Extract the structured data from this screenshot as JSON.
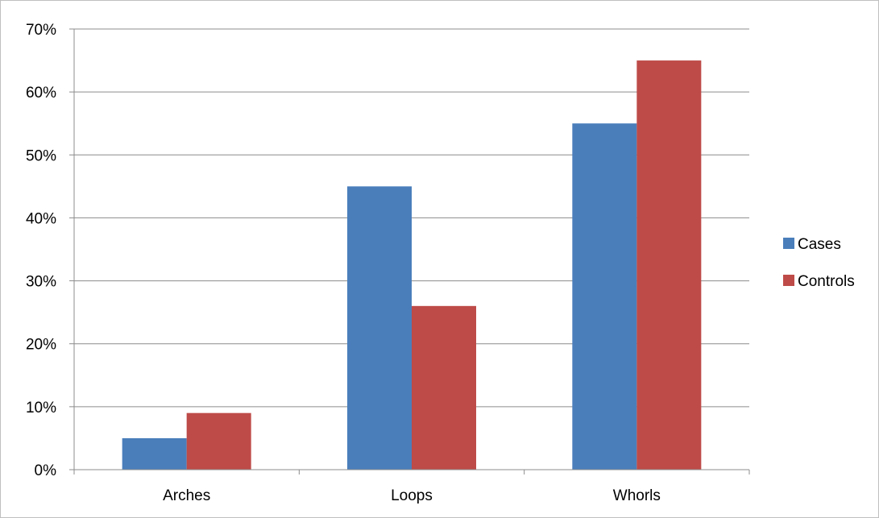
{
  "chart_data": {
    "type": "bar",
    "title": "",
    "xlabel": "",
    "ylabel": "",
    "categories": [
      "Arches",
      "Loops",
      "Whorls"
    ],
    "series": [
      {
        "name": "Cases",
        "color": "#4a7ebb",
        "values": [
          5,
          45,
          55
        ]
      },
      {
        "name": "Controls",
        "color": "#be4b48",
        "values": [
          9,
          26,
          65
        ]
      }
    ],
    "ylim": [
      0,
      70
    ],
    "yticks": [
      0,
      10,
      20,
      30,
      40,
      50,
      60,
      70
    ],
    "ytick_labels": [
      "0%",
      "10%",
      "20%",
      "30%",
      "40%",
      "50%",
      "60%",
      "70%"
    ],
    "grid": true,
    "legend_position": "right"
  }
}
